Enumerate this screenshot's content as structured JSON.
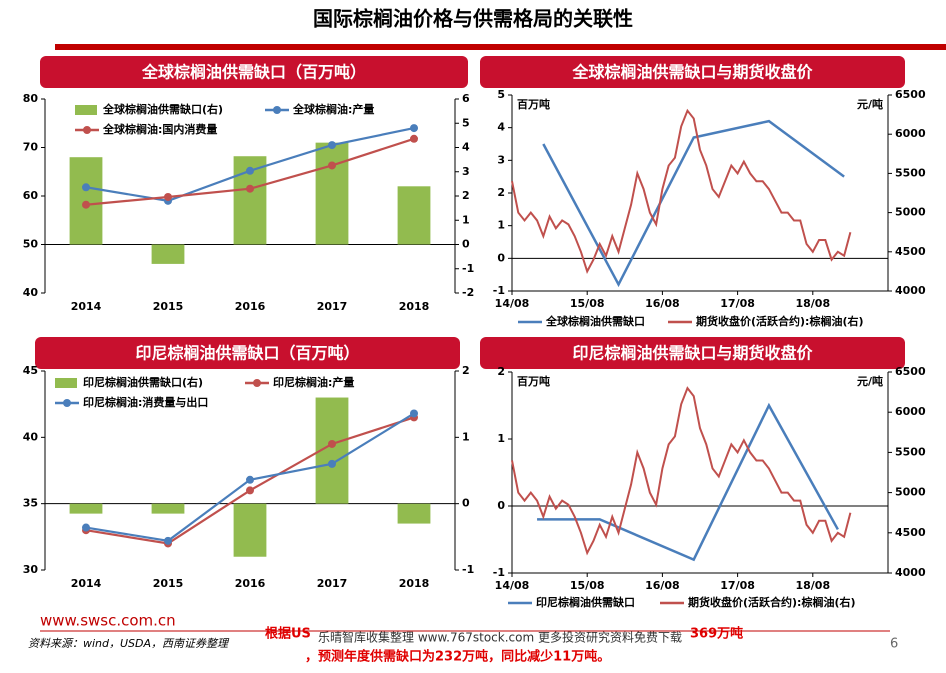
{
  "page": {
    "title": "国际棕榈油价格与供需格局的关联性",
    "website": "www.swsc.com.cn",
    "source": "资料来源：wind，USDA，西南证券整理",
    "page_number": "6",
    "note_start": "根据US",
    "note_end": "369万吨",
    "note_line2": "，预测年度供需缺口为232万吨，同比减少11万吨。",
    "watermark": "乐晴智库收集整理 www.767stock.com 更多投资研究资料免费下载"
  },
  "chart_data": [
    {
      "type": "combo",
      "title": "全球棕榈油供需缺口（百万吨）",
      "categories": [
        "2014",
        "2015",
        "2016",
        "2017",
        "2018"
      ],
      "ylim": [
        40,
        80
      ],
      "yticks": [
        40,
        50,
        60,
        70,
        80
      ],
      "y2lim": [
        -2,
        6
      ],
      "y2ticks": [
        -2,
        -1,
        0,
        1,
        2,
        3,
        4,
        5,
        6
      ],
      "series": [
        {
          "name": "全球棕榈油供需缺口(右)",
          "type": "bar",
          "axis": "y2",
          "color": "#92bb4f",
          "values": [
            3.6,
            -0.8,
            3.64,
            4.2,
            2.4
          ]
        },
        {
          "name": "全球棕榈油:产量",
          "type": "line",
          "color": "#4a7ebb",
          "values": [
            61.8,
            59.0,
            65.2,
            70.5,
            74.0
          ]
        },
        {
          "name": "全球棕榈油:国内消费量",
          "type": "line",
          "color": "#c0504d",
          "values": [
            58.2,
            59.8,
            61.5,
            66.3,
            71.8
          ]
        }
      ]
    },
    {
      "type": "line",
      "title": "全球棕榈油供需缺口与期货收盘价",
      "y_label": "百万吨",
      "y2_label": "元/吨",
      "xlim": [
        0,
        60
      ],
      "xticks": [
        {
          "value": 0,
          "label": "14/08"
        },
        {
          "value": 12,
          "label": "15/08"
        },
        {
          "value": 24,
          "label": "16/08"
        },
        {
          "value": 36,
          "label": "17/08"
        },
        {
          "value": 48,
          "label": "18/08"
        }
      ],
      "ylim": [
        -1,
        5
      ],
      "yticks": [
        -1,
        0,
        1,
        2,
        3,
        4,
        5
      ],
      "y2lim": [
        4000,
        6500
      ],
      "y2ticks": [
        4000,
        4500,
        5000,
        5500,
        6000,
        6500
      ],
      "series": [
        {
          "name": "全球棕榈油供需缺口",
          "color": "#4a7ebb",
          "x": [
            5,
            17,
            29,
            41,
            53
          ],
          "values": [
            3.5,
            -0.8,
            3.7,
            4.2,
            2.5
          ]
        },
        {
          "name": "期货收盘价(活跃合约):棕榈油(右)",
          "color": "#c0504d",
          "axis": "y2",
          "x": [
            0,
            1,
            2,
            3,
            4,
            5,
            6,
            7,
            8,
            9,
            10,
            11,
            12,
            13,
            14,
            15,
            16,
            17,
            18,
            19,
            20,
            21,
            22,
            23,
            24,
            25,
            26,
            27,
            28,
            29,
            30,
            31,
            32,
            33,
            34,
            35,
            36,
            37,
            38,
            39,
            40,
            41,
            42,
            43,
            44,
            45,
            46,
            47,
            48,
            49,
            50,
            51,
            52,
            53,
            54
          ],
          "values": [
            5400,
            5000,
            4900,
            5000,
            4900,
            4700,
            4950,
            4800,
            4900,
            4850,
            4700,
            4500,
            4250,
            4400,
            4600,
            4450,
            4700,
            4500,
            4800,
            5100,
            5500,
            5300,
            5000,
            4850,
            5300,
            5600,
            5700,
            6100,
            6300,
            6200,
            5800,
            5600,
            5300,
            5200,
            5400,
            5600,
            5500,
            5650,
            5500,
            5400,
            5400,
            5300,
            5150,
            5000,
            5000,
            4900,
            4900,
            4600,
            4500,
            4650,
            4650,
            4400,
            4500,
            4450,
            4750
          ]
        }
      ]
    },
    {
      "type": "combo",
      "title": "印尼棕榈油供需缺口（百万吨）",
      "categories": [
        "2014",
        "2015",
        "2016",
        "2017",
        "2018"
      ],
      "ylim": [
        30,
        45
      ],
      "yticks": [
        30,
        35,
        40,
        45
      ],
      "y2lim": [
        -1,
        2
      ],
      "y2ticks": [
        -1,
        0,
        1,
        2
      ],
      "series": [
        {
          "name": "印尼棕榈油供需缺口(右)",
          "type": "bar",
          "axis": "y2",
          "color": "#92bb4f",
          "values": [
            -0.15,
            -0.15,
            -0.8,
            1.6,
            -0.3
          ]
        },
        {
          "name": "印尼棕榈油:产量",
          "type": "line",
          "color": "#c0504d",
          "values": [
            33.0,
            32.0,
            36.0,
            39.5,
            41.5
          ]
        },
        {
          "name": "印尼棕榈油:消费量与出口",
          "type": "line",
          "color": "#4a7ebb",
          "values": [
            33.2,
            32.2,
            36.8,
            38.0,
            41.8
          ]
        }
      ]
    },
    {
      "type": "line",
      "title": "印尼棕榈油供需缺口与期货收盘价",
      "y_label": "百万吨",
      "y2_label": "元/吨",
      "xlim": [
        0,
        60
      ],
      "xticks": [
        {
          "value": 0,
          "label": "14/08"
        },
        {
          "value": 12,
          "label": "15/08"
        },
        {
          "value": 24,
          "label": "16/08"
        },
        {
          "value": 36,
          "label": "17/08"
        },
        {
          "value": 48,
          "label": "18/08"
        }
      ],
      "ylim": [
        -1,
        2
      ],
      "yticks": [
        -1,
        0,
        1,
        2
      ],
      "y2lim": [
        4000,
        6500
      ],
      "y2ticks": [
        4000,
        4500,
        5000,
        5500,
        6000,
        6500
      ],
      "series": [
        {
          "name": "印尼棕榈油供需缺口",
          "color": "#4a7ebb",
          "x": [
            4,
            14,
            29,
            41,
            52
          ],
          "values": [
            -0.2,
            -0.2,
            -0.8,
            1.5,
            -0.35
          ]
        },
        {
          "name": "期货收盘价(活跃合约):棕榈油(右)",
          "color": "#c0504d",
          "axis": "y2",
          "x": [
            0,
            1,
            2,
            3,
            4,
            5,
            6,
            7,
            8,
            9,
            10,
            11,
            12,
            13,
            14,
            15,
            16,
            17,
            18,
            19,
            20,
            21,
            22,
            23,
            24,
            25,
            26,
            27,
            28,
            29,
            30,
            31,
            32,
            33,
            34,
            35,
            36,
            37,
            38,
            39,
            40,
            41,
            42,
            43,
            44,
            45,
            46,
            47,
            48,
            49,
            50,
            51,
            52,
            53,
            54
          ],
          "values": [
            5400,
            5000,
            4900,
            5000,
            4900,
            4700,
            4950,
            4800,
            4900,
            4850,
            4700,
            4500,
            4250,
            4400,
            4600,
            4450,
            4700,
            4500,
            4800,
            5100,
            5500,
            5300,
            5000,
            4850,
            5300,
            5600,
            5700,
            6100,
            6300,
            6200,
            5800,
            5600,
            5300,
            5200,
            5400,
            5600,
            5500,
            5650,
            5500,
            5400,
            5400,
            5300,
            5150,
            5000,
            5000,
            4900,
            4900,
            4600,
            4500,
            4650,
            4650,
            4400,
            4500,
            4450,
            4750
          ]
        }
      ]
    }
  ]
}
